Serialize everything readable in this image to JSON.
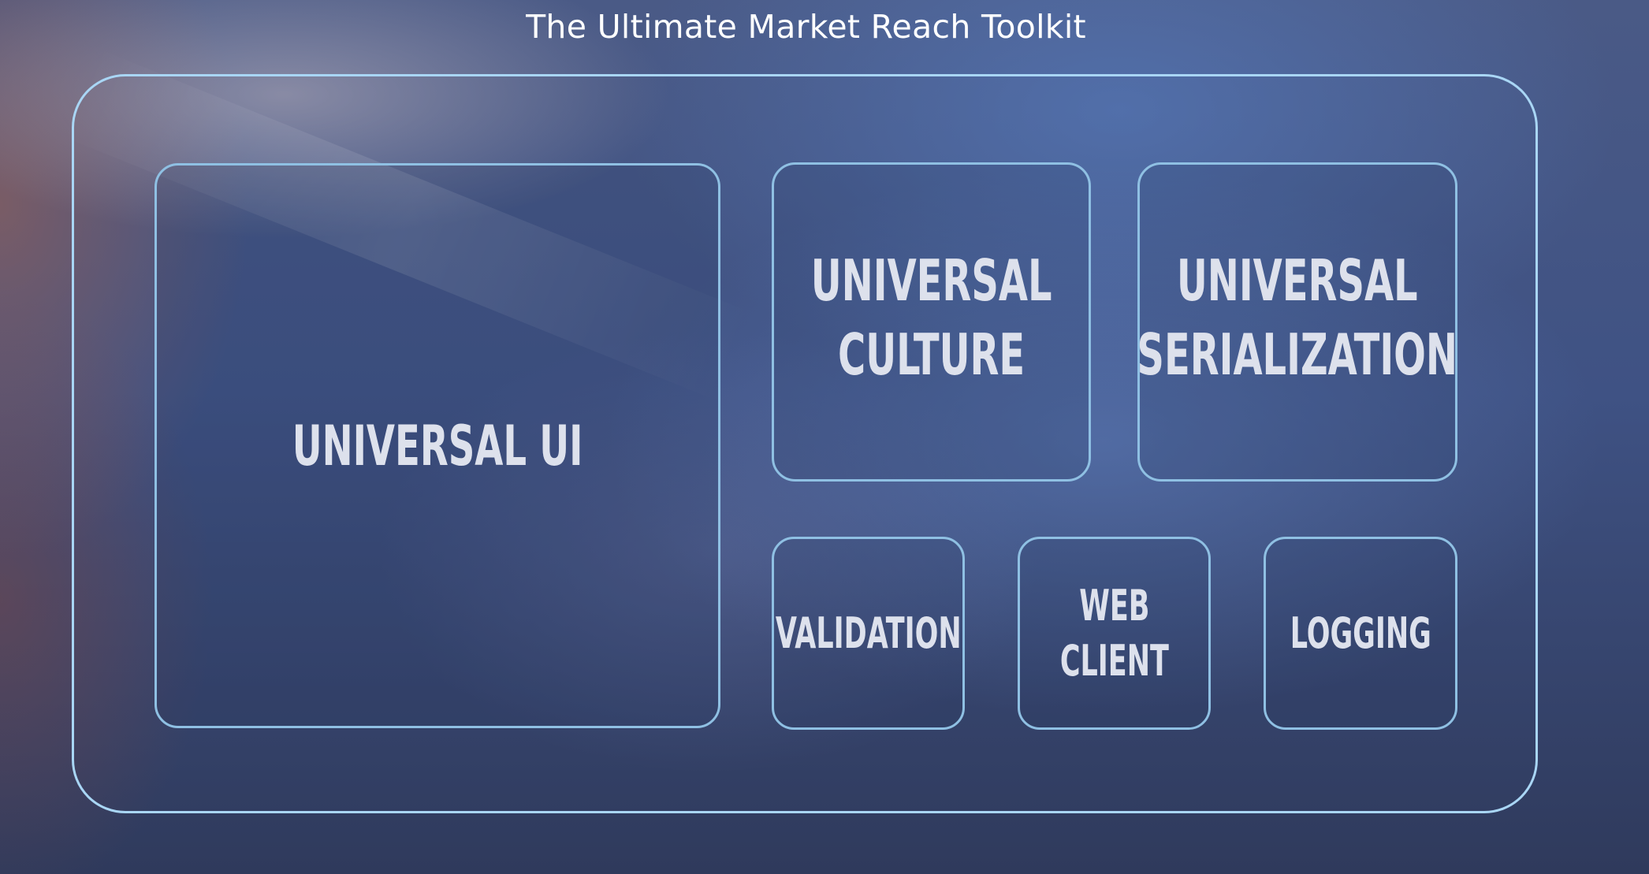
{
  "title": "The Ultimate Market Reach Toolkit",
  "modules": {
    "universal_ui": "UNIVERSAL UI",
    "universal_culture": "UNIVERSAL\nCULTURE",
    "universal_serialization": "UNIVERSAL\nSERIALIZATION",
    "validation": "VALIDATION",
    "web_client": "WEB\nCLIENT",
    "logging": "LOGGING"
  },
  "colors": {
    "outer_border": "#a9d6f5",
    "box_border": "#8fc0e3",
    "label_text": "#dde1ec",
    "title_text": "#ffffff"
  }
}
